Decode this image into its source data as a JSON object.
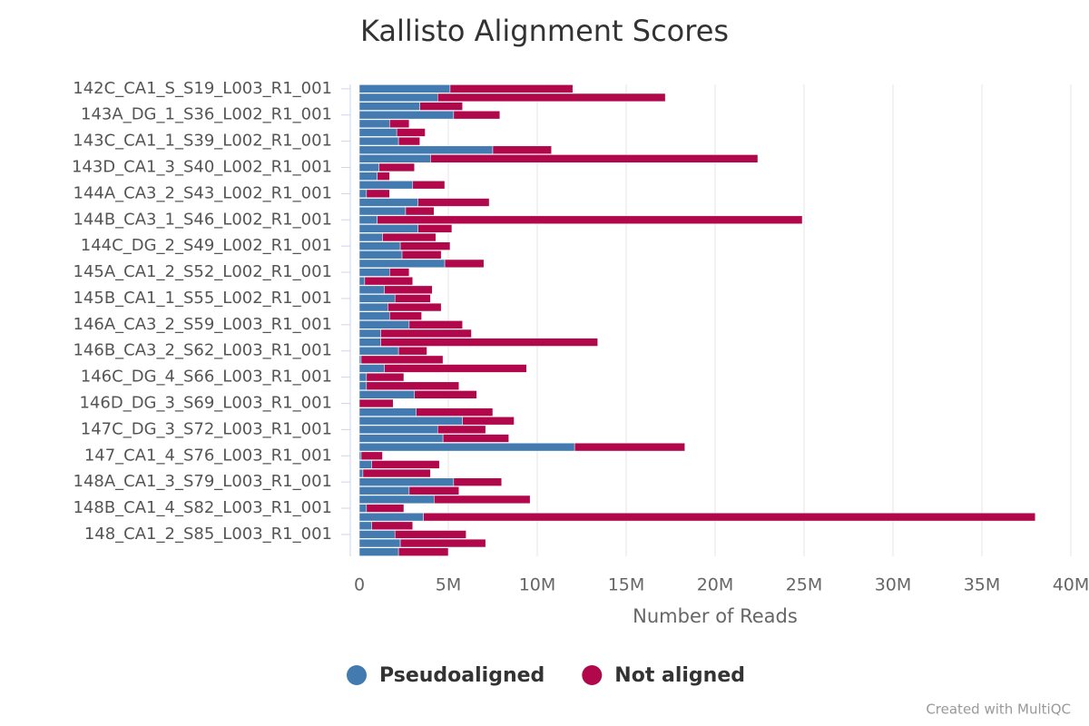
{
  "chart_data": {
    "type": "stacked_barh",
    "title": "Kallisto Alignment Scores",
    "xlabel": "Number of Reads",
    "credit": "Created with MultiQC",
    "categories": [
      "142C_CA1_S_S19_L003_R1_001",
      null,
      null,
      "143A_DG_1_S36_L002_R1_001",
      null,
      null,
      "143C_CA1_1_S39_L002_R1_001",
      null,
      null,
      "143D_CA1_3_S40_L002_R1_001",
      null,
      null,
      "144A_CA3_2_S43_L002_R1_001",
      null,
      null,
      "144B_CA3_1_S46_L002_R1_001",
      null,
      null,
      "144C_DG_2_S49_L002_R1_001",
      null,
      null,
      "145A_CA1_2_S52_L002_R1_001",
      null,
      null,
      "145B_CA1_1_S55_L002_R1_001",
      null,
      null,
      "146A_CA3_2_S59_L003_R1_001",
      null,
      null,
      "146B_CA3_2_S62_L003_R1_001",
      null,
      null,
      "146C_DG_4_S66_L003_R1_001",
      null,
      null,
      "146D_DG_3_S69_L003_R1_001",
      null,
      null,
      "147C_DG_3_S72_L003_R1_001",
      null,
      null,
      "147_CA1_4_S76_L003_R1_001",
      null,
      null,
      "148A_CA1_3_S79_L003_R1_001",
      null,
      null,
      "148B_CA1_4_S82_L003_R1_001",
      null,
      null,
      "148_CA1_2_S85_L003_R1_001",
      null,
      null
    ],
    "series": [
      {
        "name": "Pseudoaligned",
        "color": "#437bb1",
        "values": [
          5100000,
          4400000,
          3400000,
          5300000,
          1700000,
          2100000,
          2200000,
          7500000,
          4000000,
          1100000,
          1000000,
          3000000,
          400000,
          3300000,
          2600000,
          1000000,
          3300000,
          1300000,
          2300000,
          2400000,
          4800000,
          1700000,
          300000,
          1400000,
          2000000,
          1600000,
          1700000,
          2800000,
          1200000,
          1200000,
          2200000,
          100000,
          1400000,
          400000,
          400000,
          3100000,
          0,
          3200000,
          5800000,
          4400000,
          4700000,
          12100000,
          100000,
          700000,
          200000,
          5300000,
          2800000,
          4200000,
          400000,
          3600000,
          700000,
          2000000,
          2300000,
          2200000
        ]
      },
      {
        "name": "Not aligned",
        "color": "#b1084c",
        "values": [
          6900000,
          12800000,
          2400000,
          2600000,
          1100000,
          1600000,
          1200000,
          3300000,
          18400000,
          2000000,
          700000,
          1800000,
          1300000,
          4000000,
          1600000,
          23900000,
          1900000,
          3000000,
          2800000,
          2200000,
          2200000,
          1100000,
          2700000,
          2700000,
          2000000,
          3000000,
          1800000,
          3000000,
          5100000,
          12200000,
          1600000,
          4600000,
          8000000,
          2100000,
          5200000,
          3500000,
          1900000,
          4300000,
          2900000,
          2700000,
          3700000,
          6200000,
          1200000,
          3800000,
          3800000,
          2700000,
          2800000,
          5400000,
          2100000,
          34400000,
          2300000,
          4000000,
          4800000,
          2800000
        ]
      }
    ],
    "xlim": [
      0,
      40000000
    ],
    "xticks": [
      0,
      {
        "value": 5000000,
        "label": "5M"
      },
      {
        "value": 10000000,
        "label": "10M"
      },
      {
        "value": 15000000,
        "label": "15M"
      },
      {
        "value": 20000000,
        "label": "20M"
      },
      {
        "value": 25000000,
        "label": "25M"
      },
      {
        "value": 30000000,
        "label": "30M"
      },
      {
        "value": 35000000,
        "label": "35M"
      },
      {
        "value": 40000000,
        "label": "40M"
      }
    ],
    "grid": true,
    "legend": "bottom"
  }
}
